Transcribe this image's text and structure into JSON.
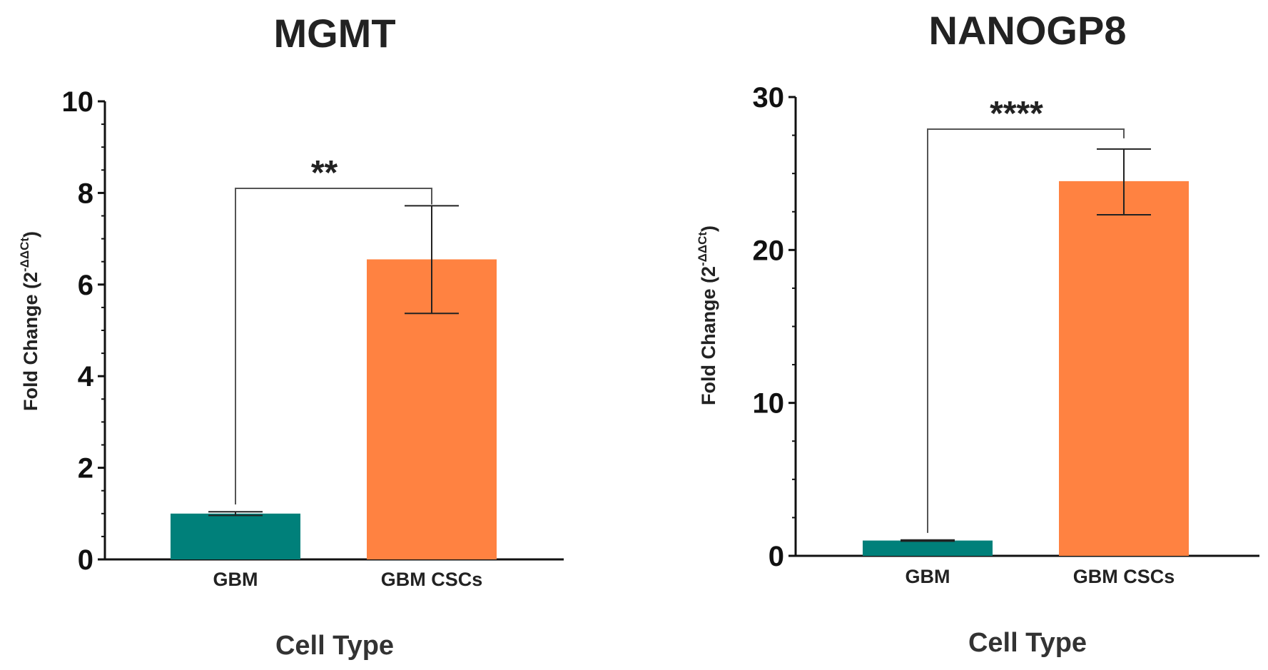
{
  "chart_data": [
    {
      "type": "bar",
      "title": "MGMT",
      "xlabel": "Cell Type",
      "ylabel": "Fold Change (2",
      "ylabel_superscript": "-ΔΔCt",
      "ylabel_close": ")",
      "categories": [
        "GBM",
        "GBM CSCs"
      ],
      "values": [
        1.0,
        6.55
      ],
      "error_low": [
        0.96,
        5.37
      ],
      "error_high": [
        1.04,
        7.72
      ],
      "colors": [
        "#00807a",
        "#ff8241"
      ],
      "ylim": [
        0,
        10
      ],
      "yticks": [
        0,
        2,
        4,
        6,
        8,
        10
      ],
      "ytick_labels": [
        "0",
        "2",
        "4",
        "6",
        "8",
        "10"
      ],
      "significance": {
        "label": "**",
        "bar_y": 8.1,
        "left_y": 1.2,
        "right_y": 7.75
      }
    },
    {
      "type": "bar",
      "title": "NANOGP8",
      "xlabel": "Cell Type",
      "ylabel": "Fold Change (2",
      "ylabel_superscript": "-ΔΔCt",
      "ylabel_close": ")",
      "categories": [
        "GBM",
        "GBM CSCs"
      ],
      "values": [
        1.0,
        24.5
      ],
      "error_low": [
        0.96,
        22.3
      ],
      "error_high": [
        1.04,
        26.6
      ],
      "colors": [
        "#00807a",
        "#ff8241"
      ],
      "ylim": [
        0,
        30
      ],
      "yticks": [
        0,
        10,
        20,
        30
      ],
      "ytick_labels": [
        "0",
        "10",
        "20",
        "30"
      ],
      "significance": {
        "label": "****",
        "bar_y": 27.9,
        "left_y": 1.5,
        "right_y": 27.3
      }
    }
  ]
}
